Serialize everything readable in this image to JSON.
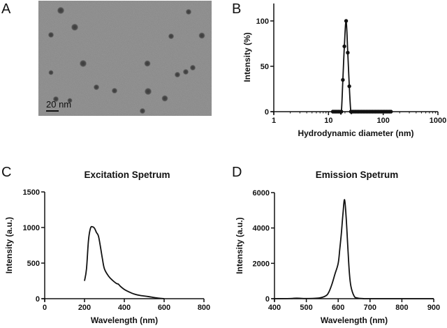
{
  "panels": {
    "A": {
      "letter": "A",
      "scale_bar": "20  nm"
    },
    "B": {
      "letter": "B"
    },
    "C": {
      "letter": "C"
    },
    "D": {
      "letter": "D"
    }
  },
  "chart_data": [
    {
      "panel": "B",
      "type": "line",
      "title": "",
      "xlabel": "Hydrodynamic diameter (nm)",
      "ylabel": "Intensity (%)",
      "xscale": "log",
      "xlim": [
        1,
        1000
      ],
      "ylim": [
        0,
        120
      ],
      "xticks": [
        "1",
        "10",
        "100",
        "1000"
      ],
      "yticks": [
        "0",
        "50",
        "100"
      ],
      "markers": true,
      "x": [
        12.0,
        12.7,
        13.5,
        14.3,
        15.2,
        16.2,
        17.2,
        18.3,
        19.5,
        21.0,
        22.5,
        24.0,
        25.6,
        27.3,
        29.2,
        31.2,
        33.3,
        35.5,
        37.9,
        40.4,
        43.1,
        46.0,
        49.1,
        52.4,
        55.9,
        59.6,
        63.6,
        67.9,
        72.4,
        77.3,
        82.5,
        88.0,
        93.9,
        100.2,
        106.9,
        114.1,
        121.7,
        129.9,
        138.6
      ],
      "y": [
        0,
        0,
        0,
        0,
        0,
        0,
        0,
        35,
        72,
        100,
        65,
        28,
        0,
        0,
        0,
        0,
        0,
        0,
        0,
        0,
        0,
        0,
        0,
        0,
        0,
        0,
        0,
        0,
        0,
        0,
        0,
        0,
        0,
        0,
        0,
        0,
        0,
        0,
        0
      ]
    },
    {
      "panel": "C",
      "type": "line",
      "title": "Excitation Spetrum",
      "xlabel": "Wavelength (nm)",
      "ylabel": "Intensity (a.u.)",
      "xlim": [
        0,
        800
      ],
      "ylim": [
        0,
        1500
      ],
      "xticks": [
        "0",
        "200",
        "400",
        "600",
        "800"
      ],
      "yticks": [
        "0",
        "500",
        "1000",
        "1500"
      ],
      "x": [
        200,
        210,
        220,
        230,
        240,
        250,
        260,
        270,
        280,
        290,
        300,
        320,
        340,
        360,
        370,
        380,
        400,
        420,
        450,
        480,
        520,
        560,
        600
      ],
      "y": [
        250,
        420,
        820,
        990,
        1010,
        990,
        930,
        880,
        730,
        560,
        420,
        320,
        260,
        215,
        205,
        175,
        130,
        100,
        65,
        45,
        30,
        12,
        0
      ]
    },
    {
      "panel": "D",
      "type": "line",
      "title": "Emission Spetrum",
      "xlabel": "Wavelength (nm)",
      "ylabel": "Intensity (a.u.)",
      "xlim": [
        400,
        900
      ],
      "ylim": [
        0,
        6000
      ],
      "xticks": [
        "400",
        "500",
        "600",
        "700",
        "800",
        "900"
      ],
      "yticks": [
        "0",
        "2000",
        "4000",
        "6000"
      ],
      "x": [
        400,
        450,
        470,
        500,
        540,
        560,
        570,
        580,
        590,
        600,
        605,
        610,
        615,
        620,
        625,
        630,
        635,
        640,
        650,
        660,
        680,
        700,
        900
      ],
      "y": [
        0,
        10,
        30,
        10,
        40,
        150,
        350,
        800,
        1400,
        2000,
        2800,
        3700,
        4800,
        5600,
        4600,
        3000,
        1500,
        700,
        150,
        40,
        5,
        0,
        0
      ]
    }
  ]
}
